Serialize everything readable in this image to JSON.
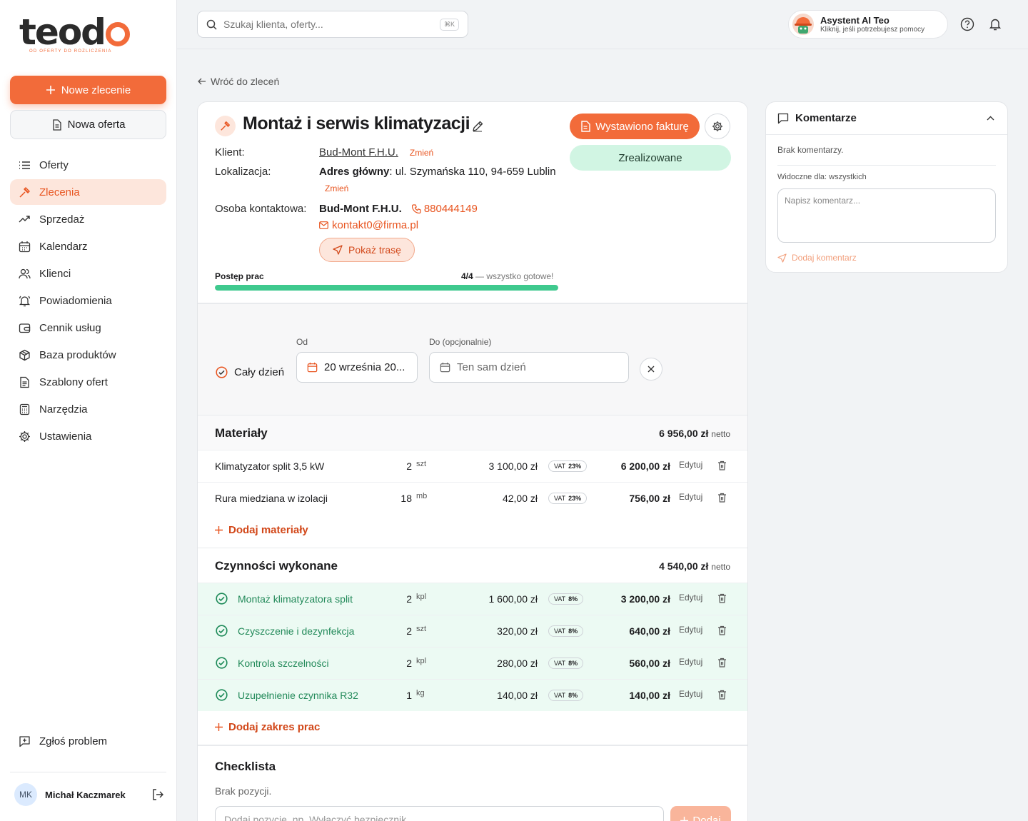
{
  "brand": {
    "name": "teod",
    "tagline": "OD OFERTY DO ROZLICZENIA"
  },
  "sidebar": {
    "new_order": "Nowe zlecenie",
    "new_offer": "Nowa oferta",
    "items": [
      {
        "label": "Oferty"
      },
      {
        "label": "Zlecenia"
      },
      {
        "label": "Sprzedaż"
      },
      {
        "label": "Kalendarz"
      },
      {
        "label": "Klienci"
      },
      {
        "label": "Powiadomienia"
      },
      {
        "label": "Cennik usług"
      },
      {
        "label": "Baza produktów"
      },
      {
        "label": "Szablony ofert"
      },
      {
        "label": "Narzędzia"
      },
      {
        "label": "Ustawienia"
      }
    ],
    "report": "Zgłoś problem",
    "user_initials": "MK",
    "user_name": "Michał Kaczmarek"
  },
  "topbar": {
    "search_placeholder": "Szukaj klienta, oferty...",
    "search_kbd": "⌘K",
    "assistant_title": "Asystent AI Teo",
    "assistant_sub": "Kliknij, jeśli potrzebujesz pomocy"
  },
  "back": "Wróć do zleceń",
  "order": {
    "title": "Montaż i serwis klimatyzacji",
    "invoice_btn": "Wystawiono fakturę",
    "status": "Zrealizowane",
    "client_label": "Klient:",
    "client": "Bud-Mont F.H.U.",
    "change": "Zmień",
    "location_label": "Lokalizacja:",
    "location_bold": "Adres główny",
    "location": ": ul. Szymańska 110, 94-659 Lublin",
    "contact_label": "Osoba kontaktowa:",
    "contact_name": "Bud-Mont F.H.U.",
    "phone": "880444149",
    "email": "kontakt0@firma.pl",
    "route": "Pokaż trasę",
    "progress_label": "Postęp prac",
    "progress_count": "4/4",
    "progress_note": " — wszystko gotowe!",
    "progress": 1.0
  },
  "dates": {
    "all_day": "Cały dzień",
    "from_label": "Od",
    "from_value": "20 września 20...",
    "to_label": "Do (opcjonalnie)",
    "to_placeholder": "Ten sam dzień"
  },
  "materials": {
    "title": "Materiały",
    "total": "6 956,00 zł",
    "netto": "netto",
    "rows": [
      {
        "name": "Klimatyzator split 3,5 kW",
        "qty": "2",
        "unit": "szt",
        "price": "3 100,00 zł",
        "vat_label": "VAT",
        "vat": "23%",
        "total": "6 200,00 zł",
        "edit": "Edytuj"
      },
      {
        "name": "Rura miedziana w izolacji",
        "qty": "18",
        "unit": "mb",
        "price": "42,00 zł",
        "vat_label": "VAT",
        "vat": "23%",
        "total": "756,00 zł",
        "edit": "Edytuj"
      }
    ],
    "add": "Dodaj materiały"
  },
  "works": {
    "title": "Czynności wykonane",
    "total": "4 540,00 zł",
    "netto": "netto",
    "rows": [
      {
        "name": "Montaż klimatyzatora split",
        "qty": "2",
        "unit": "kpl",
        "price": "1 600,00 zł",
        "vat_label": "VAT",
        "vat": "8%",
        "total": "3 200,00 zł",
        "edit": "Edytuj"
      },
      {
        "name": "Czyszczenie i dezynfekcja",
        "qty": "2",
        "unit": "szt",
        "price": "320,00 zł",
        "vat_label": "VAT",
        "vat": "8%",
        "total": "640,00 zł",
        "edit": "Edytuj"
      },
      {
        "name": "Kontrola szczelności",
        "qty": "2",
        "unit": "kpl",
        "price": "280,00 zł",
        "vat_label": "VAT",
        "vat": "8%",
        "total": "560,00 zł",
        "edit": "Edytuj"
      },
      {
        "name": "Uzupełnienie czynnika R32",
        "qty": "1",
        "unit": "kg",
        "price": "140,00 zł",
        "vat_label": "VAT",
        "vat": "8%",
        "total": "140,00 zł",
        "edit": "Edytuj"
      }
    ],
    "add": "Dodaj zakres prac"
  },
  "checklist": {
    "title": "Checklista",
    "empty": "Brak pozycji.",
    "placeholder": "Dodaj pozycję, np. Wyłączyć bezpiecznik",
    "add": "Dodaj"
  },
  "comments": {
    "title": "Komentarze",
    "empty": "Brak komentarzy.",
    "visible": "Widoczne dla: wszystkich",
    "placeholder": "Napisz komentarz...",
    "add": "Dodaj komentarz"
  },
  "colors": {
    "accent": "#f26b3a",
    "success": "#3fc98e",
    "done_bg": "#ecfaf3"
  }
}
